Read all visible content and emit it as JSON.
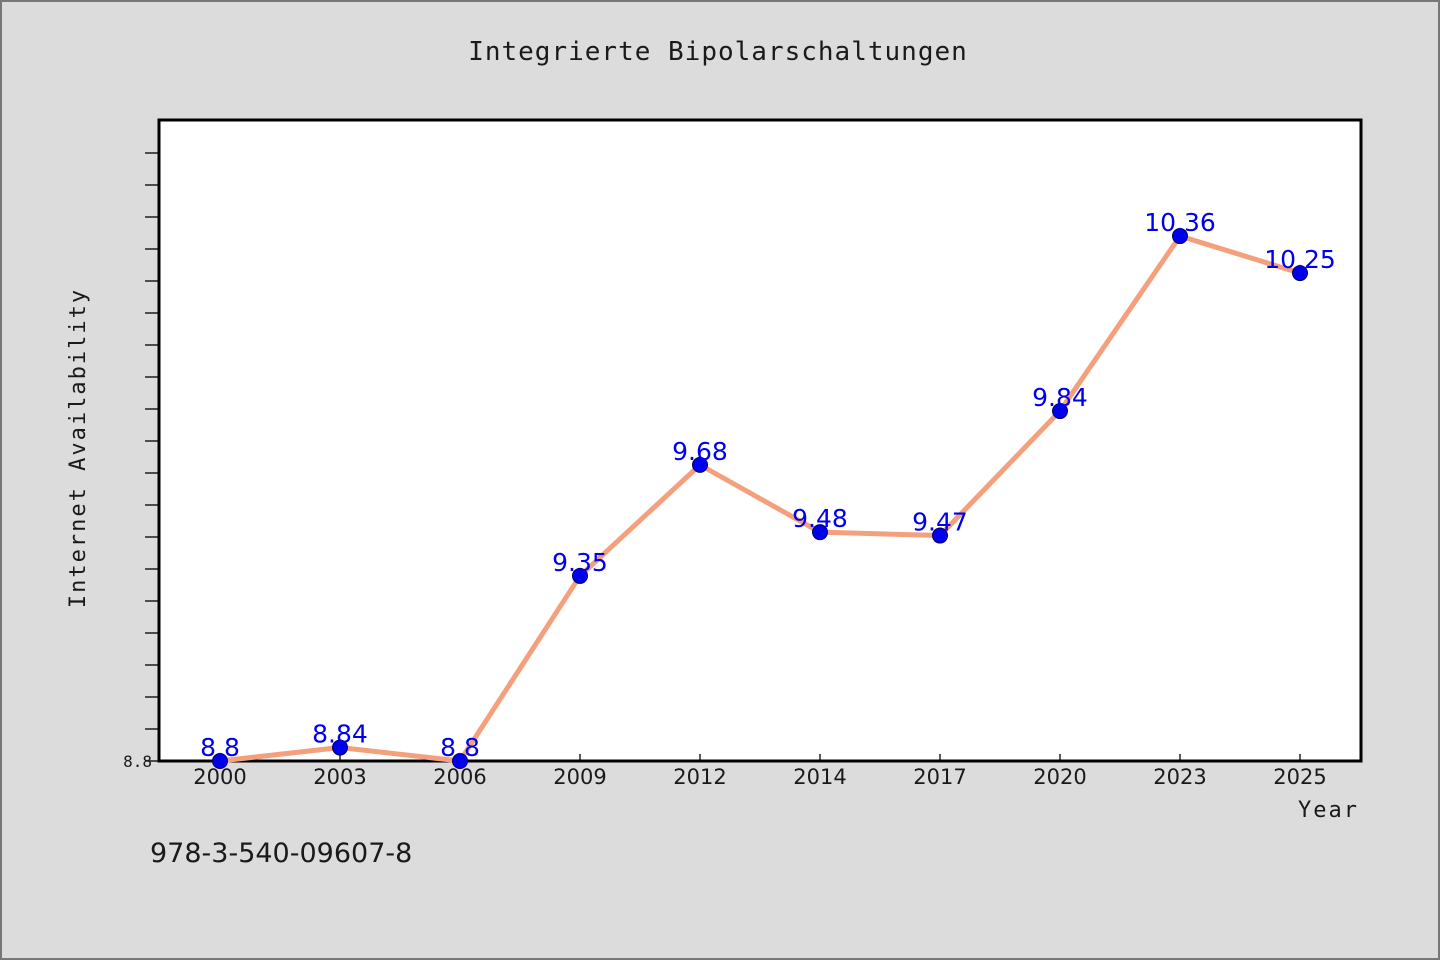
{
  "chart_data": {
    "type": "line",
    "title": "Integrierte Bipolarschaltungen",
    "xlabel": "Year",
    "ylabel": "Internet Availability",
    "categories": [
      "2000",
      "2003",
      "2006",
      "2009",
      "2012",
      "2014",
      "2017",
      "2020",
      "2023",
      "2025"
    ],
    "series": [
      {
        "values": [
          8.8,
          8.84,
          8.8,
          9.35,
          9.68,
          9.48,
          9.47,
          9.84,
          10.36,
          10.25
        ]
      }
    ],
    "data_labels": [
      "8.8",
      "8.84",
      "8.8",
      "9.35",
      "9.68",
      "9.48",
      "9.47",
      "9.84",
      "10.36",
      "10.25"
    ],
    "ylim": [
      8.8,
      10.8
    ],
    "y_tick_labels": [
      "8.8"
    ],
    "grid": false,
    "legend": "none",
    "colors": {
      "line": "#f4a07c",
      "marker": "#0000ee",
      "data_label": "#0000ee",
      "plot_background": "#ffffff",
      "figure_background": "#dcdcdc"
    }
  },
  "footer_text": "978-3-540-09607-8"
}
